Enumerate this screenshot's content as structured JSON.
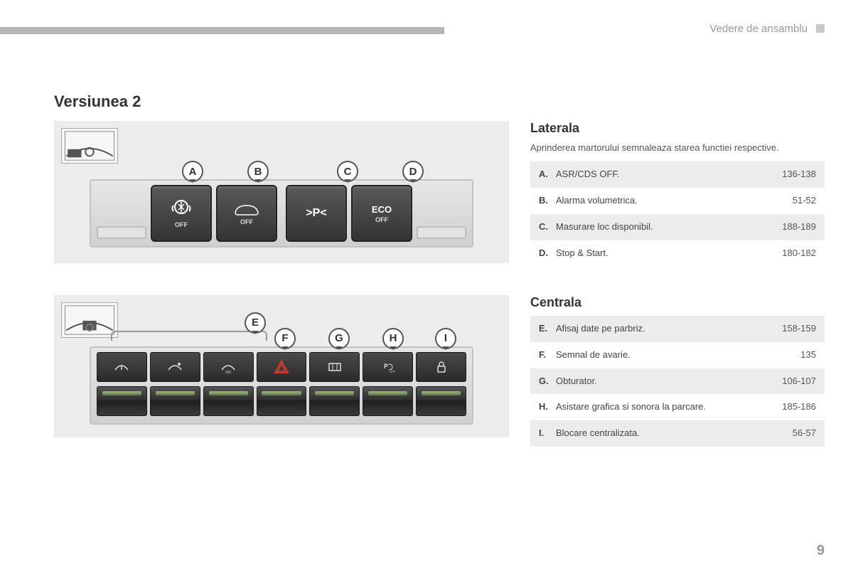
{
  "header": {
    "breadcrumb": "Vedere de ansamblu"
  },
  "page_number": "9",
  "version_title": "Versiunea 2",
  "panel1": {
    "buttons": {
      "a": {
        "label": "OFF",
        "callout": "A"
      },
      "b": {
        "label": "OFF",
        "callout": "B"
      },
      "c": {
        "label": ">P<",
        "callout": "C"
      },
      "d": {
        "label": "ECO",
        "sub": "OFF",
        "callout": "D"
      }
    }
  },
  "panel2": {
    "group_callout": "E",
    "callouts": {
      "f": "F",
      "g": "G",
      "h": "H",
      "i": "I"
    }
  },
  "side1": {
    "title": "Laterala",
    "lead": "Aprinderea martorului semnaleaza starea functiei respective.",
    "items": [
      {
        "letter": "A.",
        "label": "ASR/CDS OFF.",
        "pages": "136-138",
        "shade": true
      },
      {
        "letter": "B.",
        "label": "Alarma volumetrica.",
        "pages": "51-52",
        "shade": false
      },
      {
        "letter": "C.",
        "label": "Masurare loc disponibil.",
        "pages": "188-189",
        "shade": true
      },
      {
        "letter": "D.",
        "label": "Stop & Start.",
        "pages": "180-182",
        "shade": false
      }
    ]
  },
  "side2": {
    "title": "Centrala",
    "items": [
      {
        "letter": "E.",
        "label": "Afisaj date pe parbriz.",
        "pages": "158-159",
        "shade": true
      },
      {
        "letter": "F.",
        "label": "Semnal de avarie.",
        "pages": "135",
        "shade": false
      },
      {
        "letter": "G.",
        "label": "Obturator.",
        "pages": "106-107",
        "shade": true
      },
      {
        "letter": "H.",
        "label": "Asistare grafica si sonora la parcare.",
        "pages": "185-186",
        "shade": false
      },
      {
        "letter": "I.",
        "label": "Blocare centralizata.",
        "pages": "56-57",
        "shade": true
      }
    ]
  },
  "colors": {
    "panel_bg": "#ececec",
    "button_dark": "#3a3a3a",
    "hazard_red": "#d63a2a"
  }
}
